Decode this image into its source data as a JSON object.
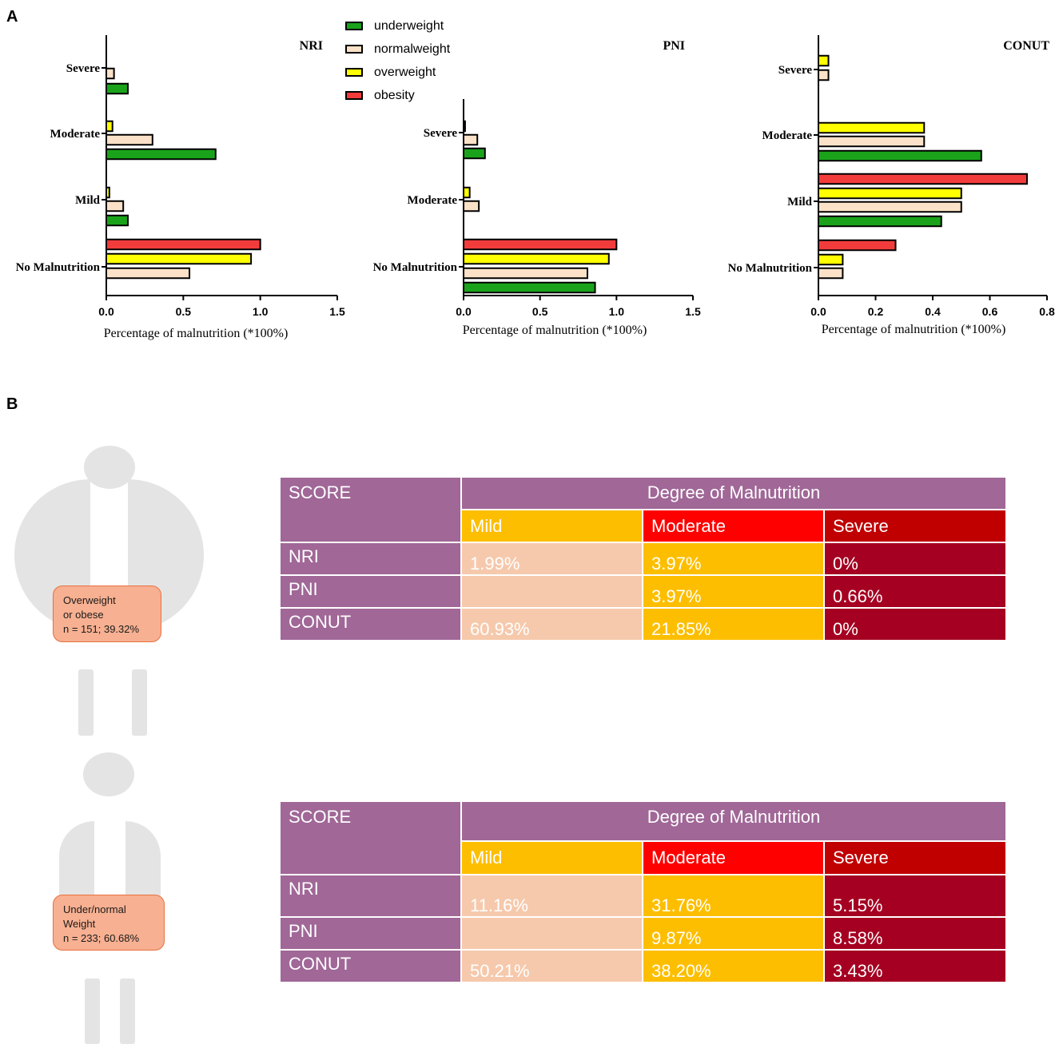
{
  "panels": {
    "a": "A",
    "b": "B"
  },
  "legend": [
    {
      "label": "underweight",
      "color": "#1aa31a"
    },
    {
      "label": "normalweight",
      "color": "#fbe1c7"
    },
    {
      "label": "overweight",
      "color": "#ffff00"
    },
    {
      "label": "obesity",
      "color": "#f23c3c"
    }
  ],
  "chart_data": [
    {
      "type": "bar",
      "orientation": "horizontal",
      "title": "NRI",
      "xlabel": "Percentage of malnutrition (*100%)",
      "xlim": [
        0,
        1.5
      ],
      "xticks": [
        "0.0",
        "0.5",
        "1.0",
        "1.5"
      ],
      "categories": [
        "Severe",
        "Moderate",
        "Mild",
        "No Malnutrition"
      ],
      "series": [
        {
          "name": "underweight",
          "values": [
            0.14,
            0.71,
            0.14,
            0
          ]
        },
        {
          "name": "normalweight",
          "values": [
            0.05,
            0.3,
            0.11,
            0.54
          ]
        },
        {
          "name": "overweight",
          "values": [
            0,
            0.04,
            0.02,
            0.94
          ]
        },
        {
          "name": "obesity",
          "values": [
            0,
            0,
            0,
            1.0
          ]
        }
      ]
    },
    {
      "type": "bar",
      "orientation": "horizontal",
      "title": "PNI",
      "xlabel": "Percentage of malnutrition (*100%)",
      "xlim": [
        0,
        1.5
      ],
      "xticks": [
        "0.0",
        "0.5",
        "1.0",
        "1.5"
      ],
      "categories": [
        "Severe",
        "Moderate",
        "No Malnutrition"
      ],
      "series": [
        {
          "name": "underweight",
          "values": [
            0.14,
            0,
            0.86
          ]
        },
        {
          "name": "normalweight",
          "values": [
            0.09,
            0.1,
            0.81
          ]
        },
        {
          "name": "overweight",
          "values": [
            0.01,
            0.04,
            0.95
          ]
        },
        {
          "name": "obesity",
          "values": [
            0,
            0,
            1.0
          ]
        }
      ]
    },
    {
      "type": "bar",
      "orientation": "horizontal",
      "title": "CONUT",
      "xlabel": "Percentage of malnutrition (*100%)",
      "xlim": [
        0,
        0.8
      ],
      "xticks": [
        "0.0",
        "0.2",
        "0.4",
        "0.6",
        "0.8"
      ],
      "categories": [
        "Severe",
        "Moderate",
        "Mild",
        "No Malnutrition"
      ],
      "series": [
        {
          "name": "underweight",
          "values": [
            0,
            0.57,
            0.43,
            0
          ]
        },
        {
          "name": "normalweight",
          "values": [
            0.035,
            0.37,
            0.5,
            0.085
          ]
        },
        {
          "name": "overweight",
          "values": [
            0.035,
            0.37,
            0.5,
            0.085
          ]
        },
        {
          "name": "obesity",
          "values": [
            0,
            0,
            0.73,
            0.27
          ]
        }
      ]
    }
  ],
  "groups": [
    {
      "box_lines": [
        "Overweight",
        "or obese",
        "n = 151; 39.32%"
      ],
      "table": {
        "score_header": "SCORE",
        "degree_header": "Degree of Malnutrition",
        "columns": [
          "Mild",
          "Moderate",
          "Severe"
        ],
        "rows": [
          {
            "name": "NRI",
            "mild": "1.99%",
            "moderate": "3.97%",
            "severe": "0%"
          },
          {
            "name": "PNI",
            "mild": "",
            "moderate": "3.97%",
            "severe": "0.66%"
          },
          {
            "name": "CONUT",
            "mild": "60.93%",
            "moderate": "21.85%",
            "severe": "0%"
          }
        ]
      }
    },
    {
      "box_lines": [
        "Under/normal",
        "Weight",
        "n = 233; 60.68%"
      ],
      "table": {
        "score_header": "SCORE",
        "degree_header": "Degree of Malnutrition",
        "columns": [
          "Mild",
          "Moderate",
          "Severe"
        ],
        "rows": [
          {
            "name": "NRI",
            "mild": "11.16%",
            "moderate": "31.76%",
            "severe": "5.15%"
          },
          {
            "name": "PNI",
            "mild": "",
            "moderate": "9.87%",
            "severe": "8.58%"
          },
          {
            "name": "CONUT",
            "mild": "50.21%",
            "moderate": "38.20%",
            "severe": "3.43%"
          }
        ]
      }
    }
  ]
}
